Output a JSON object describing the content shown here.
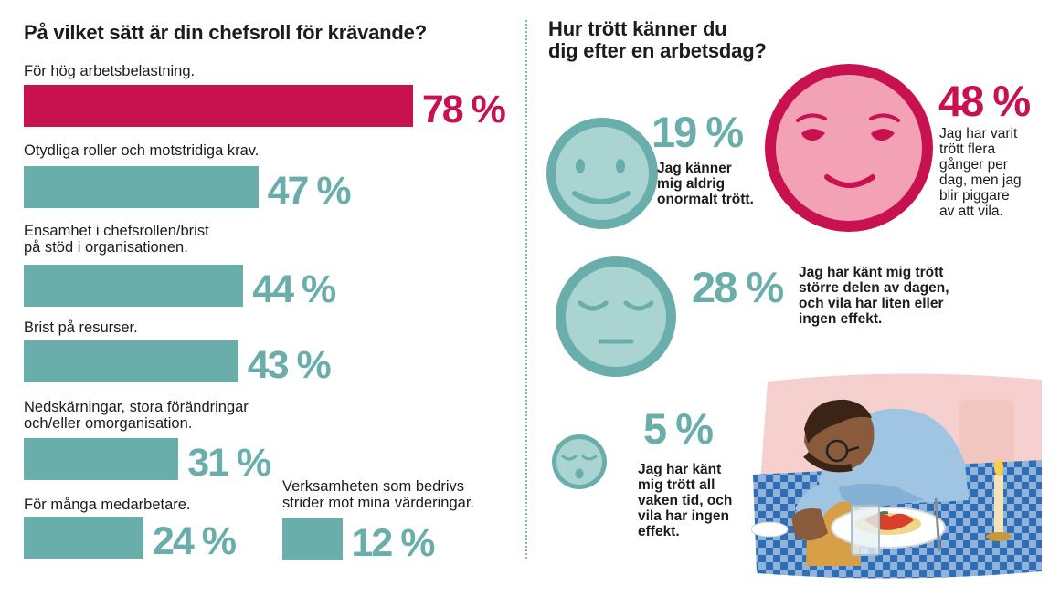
{
  "left": {
    "title": "På vilket sätt är din chefsroll för krävande?"
  },
  "right": {
    "title_line1": "Hur trött känner du",
    "title_line2": "dig efter en arbetsdag?",
    "items": [
      {
        "pct": "19 %",
        "text_lines": [
          "Jag känner",
          "mig aldrig",
          "onormalt trött."
        ]
      },
      {
        "pct": "48 %",
        "text_lines": [
          "Jag har varit",
          "trött flera",
          "gånger per",
          "dag, men jag",
          "blir piggare",
          "av att vila."
        ]
      },
      {
        "pct": "28 %",
        "text_lines": [
          "Jag har känt mig trött",
          "större delen av dagen,",
          "och vila har liten eller",
          "ingen effekt."
        ]
      },
      {
        "pct": "5 %",
        "text_lines": [
          "Jag har känt",
          "mig trött all",
          "vaken tid, och",
          "vila har ingen",
          "effekt."
        ]
      }
    ]
  },
  "colors": {
    "accent": "#c8114f",
    "teal": "#6aaeab",
    "pink_face": "#f3a2b5"
  },
  "chart_data": [
    {
      "type": "bar",
      "orientation": "horizontal",
      "title": "På vilket sätt är din chefsroll för krävande?",
      "unit": "%",
      "categories": [
        {
          "lines": [
            "För hög arbetsbelastning."
          ]
        },
        {
          "lines": [
            "Otydliga roller och motstridiga krav."
          ]
        },
        {
          "lines": [
            "Ensamhet i chefsrollen/brist",
            "på stöd i organisationen."
          ]
        },
        {
          "lines": [
            "Brist på resurser."
          ]
        },
        {
          "lines": [
            "Nedskärningar, stora förändringar",
            "och/eller omorganisation."
          ]
        },
        {
          "lines": [
            "För många medarbetare."
          ]
        },
        {
          "lines": [
            "Verksamheten som bedrivs",
            "strider mot mina värderingar."
          ]
        }
      ],
      "values": [
        78,
        47,
        44,
        43,
        31,
        24,
        12
      ],
      "value_labels": [
        "78 %",
        "47 %",
        "44 %",
        "43 %",
        "31 %",
        "24 %",
        "12 %"
      ],
      "highlight_index": 0
    },
    {
      "type": "pictorial",
      "title": "Hur trött känner du dig efter en arbetsdag?",
      "unit": "%",
      "categories": [
        "Jag känner mig aldrig onormalt trött.",
        "Jag har varit trött flera gånger per dag, men jag blir piggare av att vila.",
        "Jag har känt mig trött större delen av dagen, och vila har liten eller ingen effekt.",
        "Jag har känt mig trött all vaken tid, och vila har ingen effekt."
      ],
      "values": [
        19,
        48,
        28,
        5
      ]
    }
  ]
}
